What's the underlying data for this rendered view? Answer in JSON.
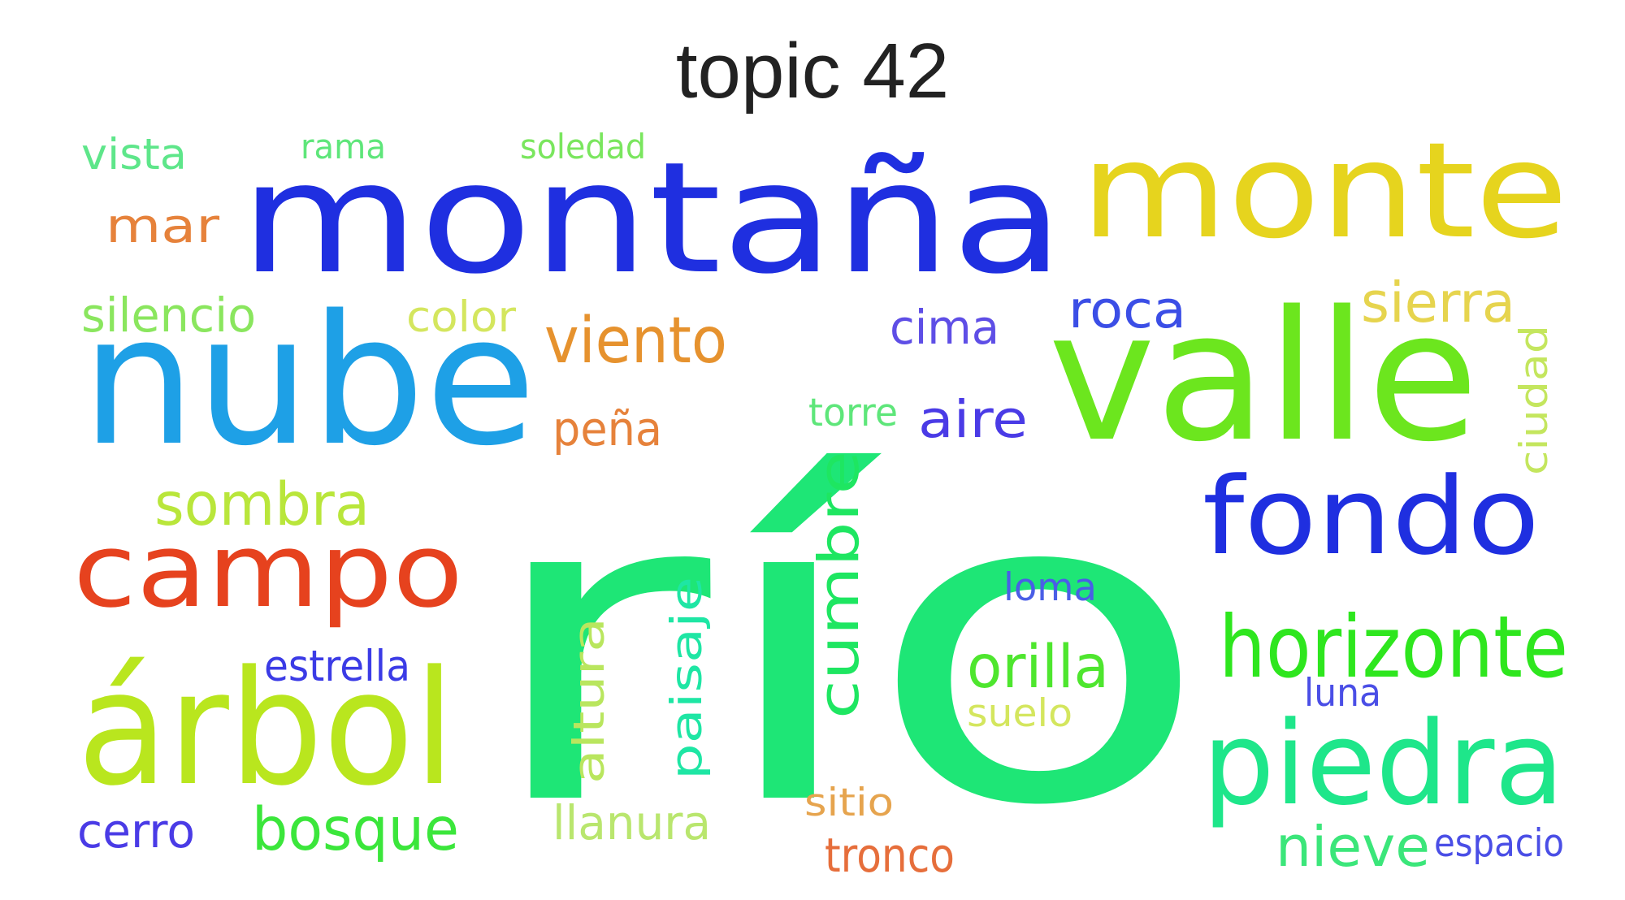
{
  "title": "topic 42",
  "words": [
    {
      "text": "río",
      "color": "#1ee676",
      "rotated": false
    },
    {
      "text": "montaña",
      "color": "#1f2fe0",
      "rotated": false
    },
    {
      "text": "monte",
      "color": "#e6d41e",
      "rotated": false
    },
    {
      "text": "nube",
      "color": "#1ea0e6",
      "rotated": false
    },
    {
      "text": "valle",
      "color": "#6ce61e",
      "rotated": false
    },
    {
      "text": "campo",
      "color": "#e6421e",
      "rotated": false
    },
    {
      "text": "árbol",
      "color": "#b9e61e",
      "rotated": false
    },
    {
      "text": "fondo",
      "color": "#1f2fe0",
      "rotated": false
    },
    {
      "text": "piedra",
      "color": "#1ee68a",
      "rotated": false
    },
    {
      "text": "horizonte",
      "color": "#2ee61e",
      "rotated": false
    },
    {
      "text": "cumbre",
      "color": "#1ee661",
      "rotated": true
    },
    {
      "text": "viento",
      "color": "#e6922e",
      "rotated": false
    },
    {
      "text": "sombra",
      "color": "#b9e63b",
      "rotated": false
    },
    {
      "text": "bosque",
      "color": "#3be63b",
      "rotated": false
    },
    {
      "text": "paisaje",
      "color": "#1ee6a4",
      "rotated": true
    },
    {
      "text": "orilla",
      "color": "#4ee62e",
      "rotated": false
    },
    {
      "text": "altura",
      "color": "#b9e65e",
      "rotated": true
    },
    {
      "text": "sierra",
      "color": "#e6d44e",
      "rotated": false
    },
    {
      "text": "roca",
      "color": "#3b4ee6",
      "rotated": false
    },
    {
      "text": "aire",
      "color": "#4a3be6",
      "rotated": false
    },
    {
      "text": "mar",
      "color": "#e6823b",
      "rotated": false
    },
    {
      "text": "llanura",
      "color": "#b9e66e",
      "rotated": false
    },
    {
      "text": "nieve",
      "color": "#3be67a",
      "rotated": false
    },
    {
      "text": "silencio",
      "color": "#8ae65e",
      "rotated": false
    },
    {
      "text": "color",
      "color": "#d4e65e",
      "rotated": false
    },
    {
      "text": "peña",
      "color": "#e6823b",
      "rotated": false
    },
    {
      "text": "cima",
      "color": "#5e4ee6",
      "rotated": false
    },
    {
      "text": "estrella",
      "color": "#3b3be6",
      "rotated": false
    },
    {
      "text": "cerro",
      "color": "#4a3be6",
      "rotated": false
    },
    {
      "text": "tronco",
      "color": "#e66e3b",
      "rotated": false
    },
    {
      "text": "ciudad",
      "color": "#c4e65e",
      "rotated": true
    },
    {
      "text": "vista",
      "color": "#5ee68a",
      "rotated": false
    },
    {
      "text": "sitio",
      "color": "#e6a44e",
      "rotated": false
    },
    {
      "text": "suelo",
      "color": "#d4e65e",
      "rotated": false
    },
    {
      "text": "loma",
      "color": "#4a5ee6",
      "rotated": false
    },
    {
      "text": "torre",
      "color": "#5ee67a",
      "rotated": false
    },
    {
      "text": "espacio",
      "color": "#4a4ee6",
      "rotated": false
    },
    {
      "text": "luna",
      "color": "#4a4ee6",
      "rotated": false
    },
    {
      "text": "rama",
      "color": "#5ee67a",
      "rotated": false
    },
    {
      "text": "soledad",
      "color": "#7ae65e",
      "rotated": false
    }
  ]
}
